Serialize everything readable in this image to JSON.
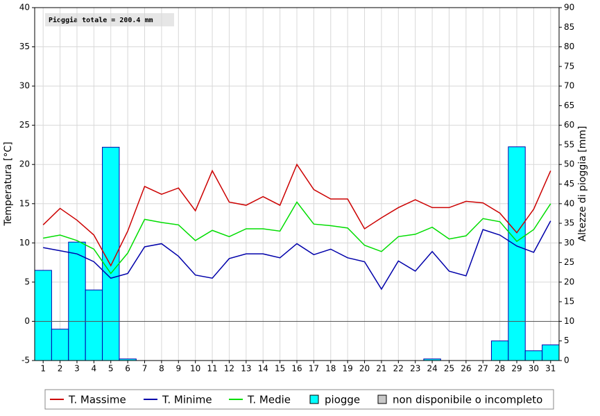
{
  "chart_data": {
    "type": "bar_line",
    "annotation": "Pioggia totale = 200.4 mm",
    "y_label": "Temperatura [°C]",
    "y2_label": "Altezze di pioggia [mm]",
    "categories": [
      "1",
      "2",
      "3",
      "4",
      "5",
      "6",
      "7",
      "8",
      "9",
      "10",
      "11",
      "12",
      "13",
      "14",
      "15",
      "16",
      "17",
      "18",
      "19",
      "20",
      "21",
      "22",
      "23",
      "24",
      "25",
      "26",
      "27",
      "28",
      "29",
      "30",
      "31"
    ],
    "series": [
      {
        "name": "T. Massime",
        "type": "line",
        "color": "#cc0000",
        "values": [
          12.3,
          14.4,
          12.9,
          11.0,
          7.1,
          11.5,
          17.2,
          16.2,
          17.0,
          14.1,
          19.2,
          15.2,
          14.8,
          15.9,
          14.8,
          20.0,
          16.8,
          15.6,
          15.6,
          11.8,
          13.2,
          14.5,
          15.5,
          14.5,
          14.5,
          15.3,
          15.1,
          13.8,
          11.3,
          14.3,
          19.2
        ]
      },
      {
        "name": "T. Minime",
        "type": "line",
        "color": "#0000aa",
        "values": [
          9.4,
          9.0,
          8.6,
          7.6,
          5.5,
          6.1,
          9.5,
          9.9,
          8.3,
          5.9,
          5.5,
          8.0,
          8.6,
          8.6,
          8.1,
          9.9,
          8.5,
          9.2,
          8.1,
          7.6,
          4.1,
          7.7,
          6.4,
          8.9,
          6.4,
          5.8,
          11.7,
          11.0,
          9.6,
          8.8,
          12.8
        ]
      },
      {
        "name": "T. Medie",
        "type": "line",
        "color": "#00dd00",
        "values": [
          10.6,
          11.0,
          10.3,
          9.2,
          6.1,
          8.7,
          13.0,
          12.6,
          12.3,
          10.3,
          11.6,
          10.8,
          11.8,
          11.8,
          11.5,
          15.2,
          12.4,
          12.2,
          11.9,
          9.7,
          8.9,
          10.8,
          11.1,
          12.0,
          10.5,
          10.9,
          13.1,
          12.7,
          10.2,
          11.7,
          15.0
        ]
      },
      {
        "name": "piogge",
        "type": "bar",
        "axis": "y2",
        "color": "#00ffff",
        "values": [
          23,
          8,
          30.2,
          18,
          54.4,
          0.4,
          0,
          0,
          0,
          0,
          0,
          0,
          0,
          0,
          0,
          0,
          0,
          0,
          0,
          0,
          0,
          0,
          0,
          0.4,
          0,
          0,
          0,
          5,
          54.5,
          2.5,
          4
        ]
      }
    ],
    "legend_extra": {
      "name": "non disponibile o incompleto",
      "color": "#c8c8c8"
    },
    "ylim": [
      -5,
      40
    ],
    "yticks": [
      -5,
      0,
      5,
      10,
      15,
      20,
      25,
      30,
      35,
      40
    ],
    "y2lim": [
      0,
      90
    ],
    "y2ticks": [
      0,
      5,
      10,
      15,
      20,
      25,
      30,
      35,
      40,
      45,
      50,
      55,
      60,
      65,
      70,
      75,
      80,
      85,
      90
    ],
    "grid": true,
    "legend": "bottom"
  }
}
